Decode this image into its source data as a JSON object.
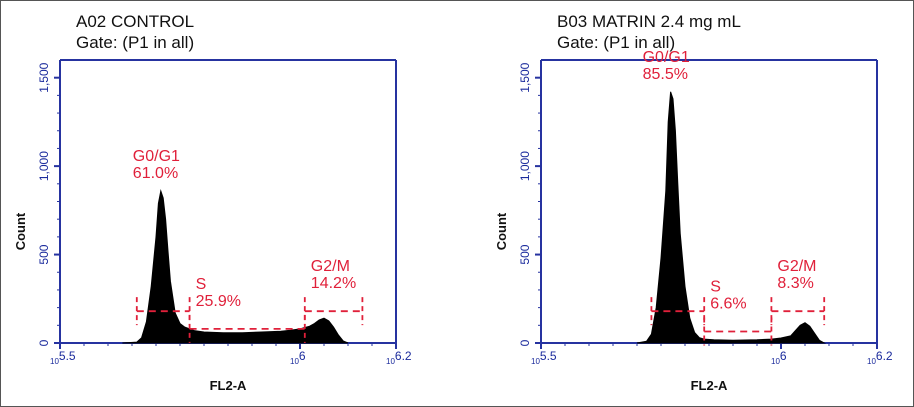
{
  "colors": {
    "axis": "#2633a0",
    "histogram": "#000000",
    "gate": "#e0203a",
    "text": "#111111"
  },
  "chart_data": [
    {
      "type": "area",
      "title": "A02 CONTROL",
      "subtitle": "Gate: (P1 in all)",
      "xlabel": "FL2-A",
      "ylabel": "Count",
      "x_scale": "log",
      "xlim": [
        5.5,
        6.2
      ],
      "ylim": [
        0,
        1000
      ],
      "x_tick_labels": [
        {
          "base": "10",
          "exp": "5.5",
          "value": 5.5
        },
        {
          "base": "10",
          "exp": "6",
          "value": 6.0
        },
        {
          "base": "10",
          "exp": "6.2",
          "value": 6.2
        }
      ],
      "y_tick_labels": [
        {
          "label": "0",
          "value": 0
        },
        {
          "label": "500",
          "value": 500
        },
        {
          "label": "1,000",
          "value": 1000
        },
        {
          "label": "1,500",
          "value": 1500
        }
      ],
      "histogram": {
        "x": [
          5.63,
          5.66,
          5.67,
          5.68,
          5.69,
          5.7,
          5.705,
          5.71,
          5.715,
          5.72,
          5.725,
          5.73,
          5.74,
          5.75,
          5.76,
          5.78,
          5.8,
          5.84,
          5.88,
          5.92,
          5.96,
          5.98,
          6.0,
          6.02,
          6.03,
          6.04,
          6.05,
          6.06,
          6.07,
          6.08,
          6.09,
          6.1
        ],
        "y": [
          0,
          5,
          30,
          120,
          320,
          600,
          790,
          860,
          820,
          700,
          520,
          350,
          170,
          110,
          90,
          70,
          62,
          58,
          58,
          62,
          66,
          72,
          80,
          95,
          110,
          130,
          140,
          125,
          90,
          45,
          12,
          0
        ]
      },
      "gates": [
        {
          "name": "G0/G1",
          "percent": "61.0%",
          "x_range": [
            5.66,
            5.77
          ],
          "y": 180
        },
        {
          "name": "S",
          "percent": "25.9%",
          "x_range": [
            5.77,
            6.01
          ],
          "y": 80
        },
        {
          "name": "G2/M",
          "percent": "14.2%",
          "x_range": [
            6.01,
            6.13
          ],
          "y": 180
        }
      ]
    },
    {
      "type": "area",
      "title": "B03 MATRIN 2.4 mg mL",
      "subtitle": "Gate: (P1 in all)",
      "xlabel": "FL2-A",
      "ylabel": "Count",
      "x_scale": "log",
      "xlim": [
        5.5,
        6.2
      ],
      "ylim": [
        0,
        1000
      ],
      "x_tick_labels": [
        {
          "base": "10",
          "exp": "5.5",
          "value": 5.5
        },
        {
          "base": "10",
          "exp": "6",
          "value": 6.0
        },
        {
          "base": "10",
          "exp": "6.2",
          "value": 6.2
        }
      ],
      "y_tick_labels": [
        {
          "label": "0",
          "value": 0
        },
        {
          "label": "500",
          "value": 500
        },
        {
          "label": "1,000",
          "value": 1000
        },
        {
          "label": "1,500",
          "value": 1500
        }
      ],
      "histogram": {
        "x": [
          5.7,
          5.72,
          5.73,
          5.74,
          5.75,
          5.76,
          5.765,
          5.77,
          5.775,
          5.78,
          5.785,
          5.79,
          5.8,
          5.81,
          5.82,
          5.83,
          5.84,
          5.86,
          5.9,
          5.95,
          5.98,
          6.0,
          6.02,
          6.03,
          6.04,
          6.05,
          6.06,
          6.07,
          6.08,
          6.09
        ],
        "y": [
          0,
          10,
          50,
          200,
          480,
          860,
          1250,
          1420,
          1380,
          1200,
          900,
          620,
          320,
          140,
          60,
          30,
          22,
          18,
          16,
          18,
          22,
          28,
          40,
          70,
          100,
          115,
          95,
          55,
          15,
          0
        ]
      },
      "gates": [
        {
          "name": "G0/G1",
          "percent": "85.5%",
          "x_range": [
            5.73,
            5.84
          ],
          "y": 180
        },
        {
          "name": "S",
          "percent": "6.6%",
          "x_range": [
            5.84,
            5.98
          ],
          "y": 65
        },
        {
          "name": "G2/M",
          "percent": "8.3%",
          "x_range": [
            5.98,
            6.09
          ],
          "y": 180
        }
      ]
    }
  ]
}
